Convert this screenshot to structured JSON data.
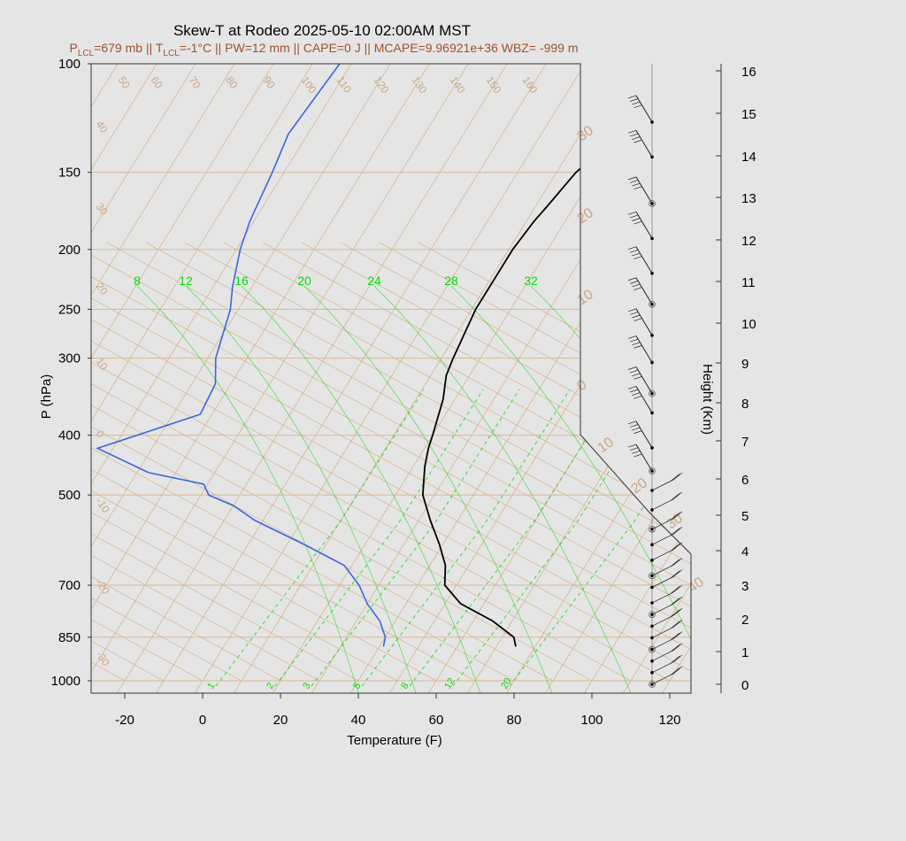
{
  "title": "Skew-T at Rodeo 2025-05-10 02:00AM MST",
  "subtitle": {
    "lcl_p": "P",
    "lcl_p_sub": "LCL",
    "lcl_p_val": "=679 mb || ",
    "lcl_t": "T",
    "lcl_t_sub": "LCL",
    "rest": "=-1°C || PW=12 mm || CAPE=0 J || MCAPE=9.96921e+36 WBZ= -999 m"
  },
  "axes": {
    "xlabel": "Temperature (F)",
    "ylabel": "P (hPa)",
    "y2label": "Height (Km)"
  },
  "colors": {
    "background": "#e5e5e5",
    "isotherm": "#d9b892",
    "temperature": "#000000",
    "dewpoint": "#3a66e0",
    "mixing": "#00dd00",
    "subtitle": "#a0522d"
  },
  "chart_data": {
    "type": "line",
    "title": "Skew-T at Rodeo 2025-05-10 02:00AM MST",
    "xlabel": "Temperature (F)",
    "ylabel": "P (hPa)",
    "xlim": [
      -28,
      125
    ],
    "ylim_pressure": [
      1050,
      100
    ],
    "x_ticks": [
      "-20",
      "0",
      "20",
      "40",
      "60",
      "80",
      "100",
      "120"
    ],
    "x_tick_values": [
      -20,
      0,
      20,
      40,
      60,
      80,
      100,
      120
    ],
    "p_ticks": [
      "100",
      "150",
      "200",
      "250",
      "300",
      "400",
      "500",
      "700",
      "850",
      "1000"
    ],
    "p_tick_values": [
      100,
      150,
      200,
      250,
      300,
      400,
      500,
      700,
      850,
      1000
    ],
    "height_ticks": [
      "0",
      "1",
      "2",
      "3",
      "4",
      "5",
      "6",
      "7",
      "8",
      "9",
      "10",
      "11",
      "12",
      "13",
      "14",
      "15",
      "16"
    ],
    "skewed_isotherm_labels": [
      "-30",
      "-20",
      "-10",
      "0",
      "10",
      "20",
      "30",
      "40",
      "50",
      "60",
      "70",
      "80",
      "90",
      "100",
      "110",
      "120",
      "130",
      "140",
      "150",
      "160"
    ],
    "temp_scale_labels": [
      "30",
      "20",
      "10",
      "0",
      "10",
      "20",
      "30",
      "40"
    ],
    "mixing_ratio_labels": [
      "1",
      "2",
      "3",
      "5",
      "8",
      "12",
      "20"
    ],
    "adiabat_labels": [
      "8",
      "12",
      "16",
      "20",
      "24",
      "28",
      "32"
    ],
    "series": [
      {
        "name": "Temperature",
        "p": [
          880,
          850,
          800,
          750,
          700,
          650,
          600,
          550,
          500,
          450,
          420,
          400,
          350,
          320,
          300,
          250,
          220,
          200,
          180,
          170,
          150,
          130,
          100
        ],
        "t": [
          75,
          73,
          65,
          54,
          47,
          44,
          39,
          33,
          27,
          23,
          21,
          20,
          17,
          14,
          13,
          11,
          11,
          11,
          12,
          13,
          15,
          20,
          33
        ]
      },
      {
        "name": "Dewpoint",
        "p": [
          880,
          850,
          800,
          750,
          700,
          650,
          600,
          550,
          520,
          500,
          480,
          460,
          420,
          370,
          330,
          300,
          250,
          230,
          200,
          180,
          150,
          130,
          100
        ],
        "t": [
          41,
          40,
          36,
          30,
          25,
          18,
          4,
          -12,
          -20,
          -28,
          -31,
          -47,
          -64,
          -43,
          -44,
          -48,
          -52,
          -55,
          -59,
          -61,
          -63,
          -65,
          -63
        ]
      }
    ],
    "wind_barbs_km": [
      0.0,
      0.3,
      0.6,
      0.9,
      1.2,
      1.5,
      1.8,
      2.1,
      2.5,
      2.8,
      3.2,
      3.6,
      4.0,
      4.5,
      5.0,
      5.5,
      6.1,
      7.0,
      7.5,
      8.3,
      9.0,
      9.8,
      10.6,
      11.5,
      12.4,
      13.6,
      14.5
    ]
  }
}
